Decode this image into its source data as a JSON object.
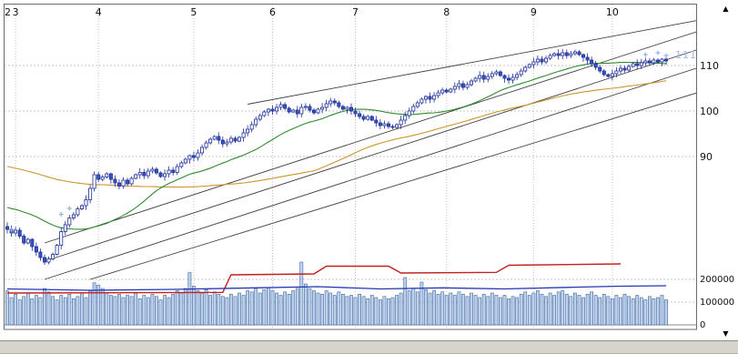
{
  "icons": {
    "up_arrow": "▲",
    "down_arrow": "▼"
  },
  "chart_data": {
    "type": "candlestick+volume",
    "title": "",
    "current_price_label": "111",
    "x_axis": {
      "unit": "month",
      "ticks": [
        {
          "label": "2",
          "day": 0
        },
        {
          "label": "3",
          "day": 2
        },
        {
          "label": "4",
          "day": 22
        },
        {
          "label": "5",
          "day": 45
        },
        {
          "label": "6",
          "day": 64
        },
        {
          "label": "7",
          "day": 84
        },
        {
          "label": "8",
          "day": 106
        },
        {
          "label": "9",
          "day": 127
        },
        {
          "label": "10",
          "day": 146
        }
      ]
    },
    "price_axis": {
      "side": "right",
      "ticks": [
        {
          "label": "110",
          "value": 110
        },
        {
          "label": "100",
          "value": 100
        },
        {
          "label": "90",
          "value": 90
        }
      ],
      "range_hint": [
        62,
        122
      ]
    },
    "volume_axis": {
      "side": "right",
      "ticks": [
        {
          "label": "200000",
          "value": 200000
        },
        {
          "label": "100000",
          "value": 100000
        },
        {
          "label": "0",
          "value": 0
        }
      ]
    },
    "closes": [
      74,
      73.2,
      73.8,
      72.5,
      71,
      71.8,
      70.2,
      69,
      67.8,
      66.8,
      67.5,
      68.5,
      70.5,
      73.5,
      75,
      76.5,
      77.2,
      78.5,
      79.2,
      80.5,
      83,
      86,
      85,
      85.5,
      86.2,
      85,
      84.2,
      83.5,
      84.8,
      84,
      85.2,
      86,
      86.5,
      85.8,
      86.8,
      87.2,
      86.4,
      85.6,
      86.2,
      87,
      86.5,
      87.8,
      88.6,
      89.4,
      90.2,
      89.8,
      90.8,
      92,
      93,
      93.8,
      94.4,
      93.6,
      92.8,
      93.2,
      94,
      93.4,
      94.2,
      95.2,
      96,
      97,
      98.2,
      99,
      99.8,
      100.4,
      100,
      100.8,
      101.4,
      100.6,
      99.8,
      100.2,
      99.4,
      100.8,
      101,
      100.2,
      99.6,
      100.4,
      100.8,
      101.6,
      102.2,
      101.8,
      101,
      100.4,
      100.8,
      100,
      99.4,
      98.8,
      98.2,
      98.8,
      98,
      97.4,
      96.8,
      97.2,
      96.6,
      96.4,
      97,
      98,
      99,
      100,
      101,
      101.8,
      102.6,
      103.2,
      102.6,
      103.4,
      104,
      104.6,
      104.2,
      104.8,
      105.4,
      106,
      105.2,
      105.8,
      106.6,
      107.2,
      107.8,
      107,
      107.6,
      108.2,
      108.6,
      107.8,
      107.2,
      106.8,
      107.4,
      108,
      108.8,
      109.6,
      110.2,
      110.8,
      111.4,
      110.8,
      111.6,
      112.2,
      112.6,
      112.2,
      112.8,
      112.2,
      112.6,
      113,
      112.4,
      111.8,
      111.2,
      110.4,
      109.6,
      108.8,
      108,
      107.6,
      108.2,
      108.8,
      109.4,
      109,
      109.8,
      110.4,
      110,
      110.6,
      111,
      110.6,
      111.2,
      110.8,
      111.4,
      111
    ],
    "volumes_unit": "thousands",
    "volumes_k": [
      150,
      120,
      135,
      110,
      125,
      140,
      115,
      130,
      120,
      160,
      145,
      125,
      110,
      130,
      120,
      135,
      115,
      125,
      140,
      120,
      150,
      185,
      175,
      160,
      140,
      130,
      125,
      135,
      120,
      130,
      125,
      140,
      115,
      130,
      120,
      135,
      125,
      110,
      130,
      120,
      135,
      150,
      140,
      160,
      230,
      170,
      150,
      140,
      155,
      130,
      145,
      135,
      125,
      120,
      135,
      125,
      140,
      130,
      150,
      145,
      160,
      140,
      155,
      165,
      150,
      140,
      130,
      145,
      135,
      150,
      160,
      276,
      180,
      160,
      150,
      140,
      135,
      150,
      140,
      130,
      145,
      135,
      125,
      130,
      120,
      135,
      125,
      115,
      130,
      120,
      110,
      125,
      115,
      120,
      130,
      140,
      208,
      150,
      160,
      145,
      188,
      155,
      140,
      150,
      135,
      145,
      130,
      140,
      130,
      145,
      135,
      125,
      140,
      130,
      120,
      135,
      125,
      140,
      130,
      120,
      130,
      115,
      125,
      120,
      135,
      145,
      130,
      140,
      150,
      135,
      125,
      140,
      130,
      145,
      150,
      135,
      125,
      140,
      130,
      120,
      135,
      145,
      130,
      120,
      135,
      125,
      115,
      130,
      120,
      135,
      125,
      115,
      130,
      120,
      110,
      125,
      115,
      120,
      130,
      110
    ],
    "overlays": {
      "ma_short": {
        "window": 25,
        "seed": 79,
        "color": "#2f8b30"
      },
      "ma_long": {
        "window": 75,
        "seed": 88,
        "color": "#c9972c"
      },
      "red_line": {
        "color": "#c42020",
        "points": [
          {
            "d": 0,
            "v": 140000
          },
          {
            "d": 52,
            "v": 143000
          },
          {
            "d": 54,
            "v": 220000
          },
          {
            "d": 74,
            "v": 224000
          },
          {
            "d": 77,
            "v": 258000
          },
          {
            "d": 92,
            "v": 258000
          },
          {
            "d": 95,
            "v": 228000
          },
          {
            "d": 118,
            "v": 231000
          },
          {
            "d": 121,
            "v": 262000
          },
          {
            "d": 148,
            "v": 268000
          }
        ]
      },
      "blue_line": {
        "color": "#2438b4",
        "points": [
          {
            "d": 0,
            "v": 158000
          },
          {
            "d": 20,
            "v": 152000
          },
          {
            "d": 40,
            "v": 156000
          },
          {
            "d": 60,
            "v": 163000
          },
          {
            "d": 75,
            "v": 168000
          },
          {
            "d": 90,
            "v": 158000
          },
          {
            "d": 105,
            "v": 163000
          },
          {
            "d": 120,
            "v": 158000
          },
          {
            "d": 135,
            "v": 165000
          },
          {
            "d": 148,
            "v": 170000
          },
          {
            "d": 159,
            "v": 172000
          }
        ]
      },
      "trendlines": [
        {
          "d1": 9,
          "p1": 71,
          "d2": 170,
          "p2": 118.5
        },
        {
          "d1": 9,
          "p1": 67,
          "d2": 170,
          "p2": 114.5
        },
        {
          "d1": 9,
          "p1": 63,
          "d2": 170,
          "p2": 110.5
        },
        {
          "d1": 20,
          "p1": 63,
          "d2": 170,
          "p2": 105
        },
        {
          "d1": 58,
          "p1": 101.5,
          "d2": 170,
          "p2": 120.5
        }
      ],
      "markers": [
        {
          "day": 1,
          "price": 73.8
        },
        {
          "day": 13,
          "price": 77.3
        },
        {
          "day": 15,
          "price": 78.6
        },
        {
          "day": 154,
          "price": 112.4
        },
        {
          "day": 157,
          "price": 112.8
        },
        {
          "day": 159,
          "price": 112.2
        }
      ]
    },
    "colors": {
      "candle_stroke": "#1b2d96",
      "down_fill": "#3c55c0",
      "up_fill": "#ffffff",
      "volume_fill": "#b9d3ee",
      "volume_stroke": "#49659e",
      "grid": "#c4c4c4",
      "trend": "#404040",
      "marker": "#8fb3e8",
      "price_label": "#9db9e6",
      "text": "#101010",
      "border": "#6b6b6b"
    }
  }
}
